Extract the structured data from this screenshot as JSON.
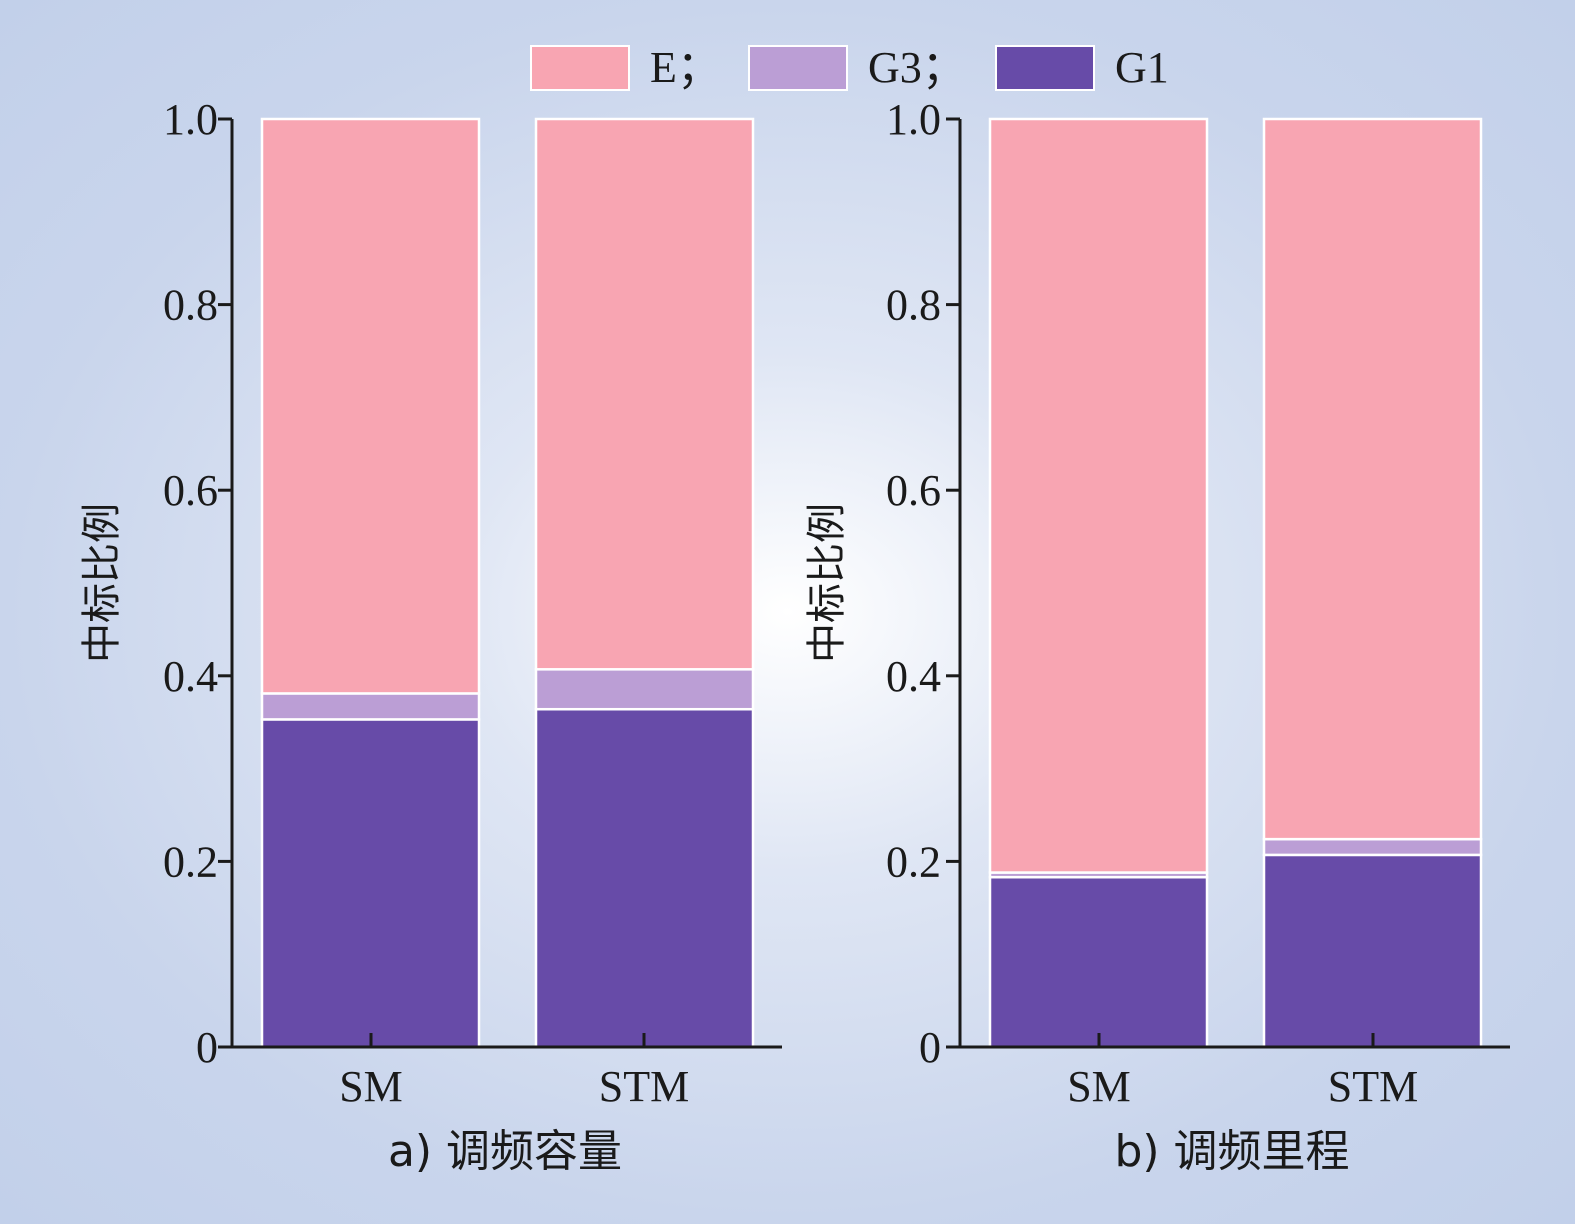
{
  "legend": [
    {
      "label": "E；",
      "series": "E"
    },
    {
      "label": "G3；",
      "series": "G3"
    },
    {
      "label": "G1",
      "series": "G1"
    }
  ],
  "colors": {
    "E": "#f8a5b2",
    "G3": "#bb9ed5",
    "G1": "#674ba8",
    "axis": "#1a1a1a",
    "bar_edge": "#ffffff"
  },
  "chart_data": [
    {
      "type": "bar",
      "stacked": true,
      "caption": "a) 调频容量",
      "ylabel": "中标比例",
      "categories": [
        "SM",
        "STM"
      ],
      "ylim": [
        0,
        1.0
      ],
      "yticks": [
        0,
        0.2,
        0.4,
        0.6,
        0.8,
        1.0
      ],
      "ytick_labels": [
        "0",
        "0.2",
        "0.4",
        "0.6",
        "0.8",
        "1.0"
      ],
      "series": [
        {
          "name": "G1",
          "values": [
            0.353,
            0.364
          ]
        },
        {
          "name": "G3",
          "values": [
            0.028,
            0.043
          ]
        },
        {
          "name": "E",
          "values": [
            0.619,
            0.593
          ]
        }
      ]
    },
    {
      "type": "bar",
      "stacked": true,
      "caption": "b) 调频里程",
      "ylabel": "中标比例",
      "categories": [
        "SM",
        "STM"
      ],
      "ylim": [
        0,
        1.0
      ],
      "yticks": [
        0,
        0.2,
        0.4,
        0.6,
        0.8,
        1.0
      ],
      "ytick_labels": [
        "0",
        "0.2",
        "0.4",
        "0.6",
        "0.8",
        "1.0"
      ],
      "series": [
        {
          "name": "G1",
          "values": [
            0.183,
            0.207
          ]
        },
        {
          "name": "G3",
          "values": [
            0.005,
            0.017
          ]
        },
        {
          "name": "E",
          "values": [
            0.812,
            0.776
          ]
        }
      ]
    }
  ]
}
